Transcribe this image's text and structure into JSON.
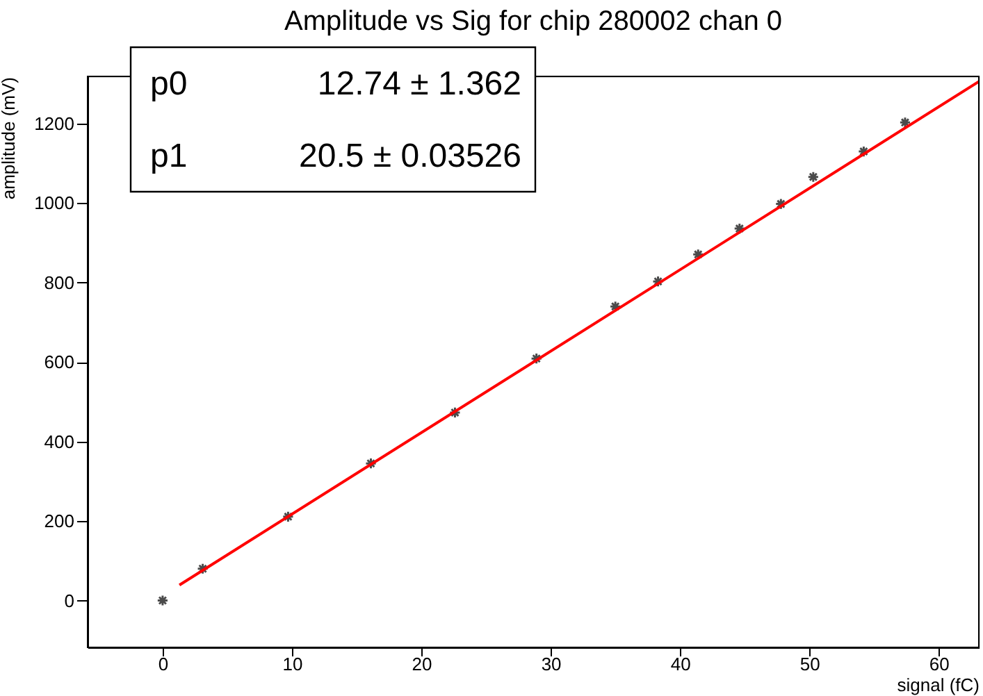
{
  "chart_data": {
    "type": "scatter",
    "title": "Amplitude vs Sig for chip 280002 chan 0",
    "xlabel": "signal (fC)",
    "ylabel": "amplitude (mV)",
    "annotations": [
      "p0",
      "12.74 ± 1.362",
      "p1",
      "20.5 ± 0.03526"
    ],
    "xlim": [
      -5.8,
      63.1
    ],
    "xticks": [
      0,
      10,
      20,
      30,
      40,
      50,
      60
    ],
    "ylim": [
      -118,
      1319
    ],
    "yticks": [
      0,
      200,
      400,
      600,
      800,
      1000,
      1200
    ],
    "grid": false,
    "series": [
      {
        "color": "#000000",
        "marker": "cross",
        "x": [
          0,
          3.1,
          9.7,
          16.1,
          22.6,
          28.9,
          35.0,
          38.3,
          41.4,
          44.6,
          47.8,
          50.3,
          54.2,
          57.4
        ],
        "values": [
          0,
          80,
          211,
          345,
          473,
          609,
          740,
          803,
          871,
          936,
          998,
          1066,
          1130,
          1203
        ]
      },
      {
        "type": "line",
        "color": "#ff0000",
        "marker": "none",
        "x": [
          1.3,
          63.1
        ],
        "values": [
          39,
          1306
        ]
      }
    ]
  }
}
